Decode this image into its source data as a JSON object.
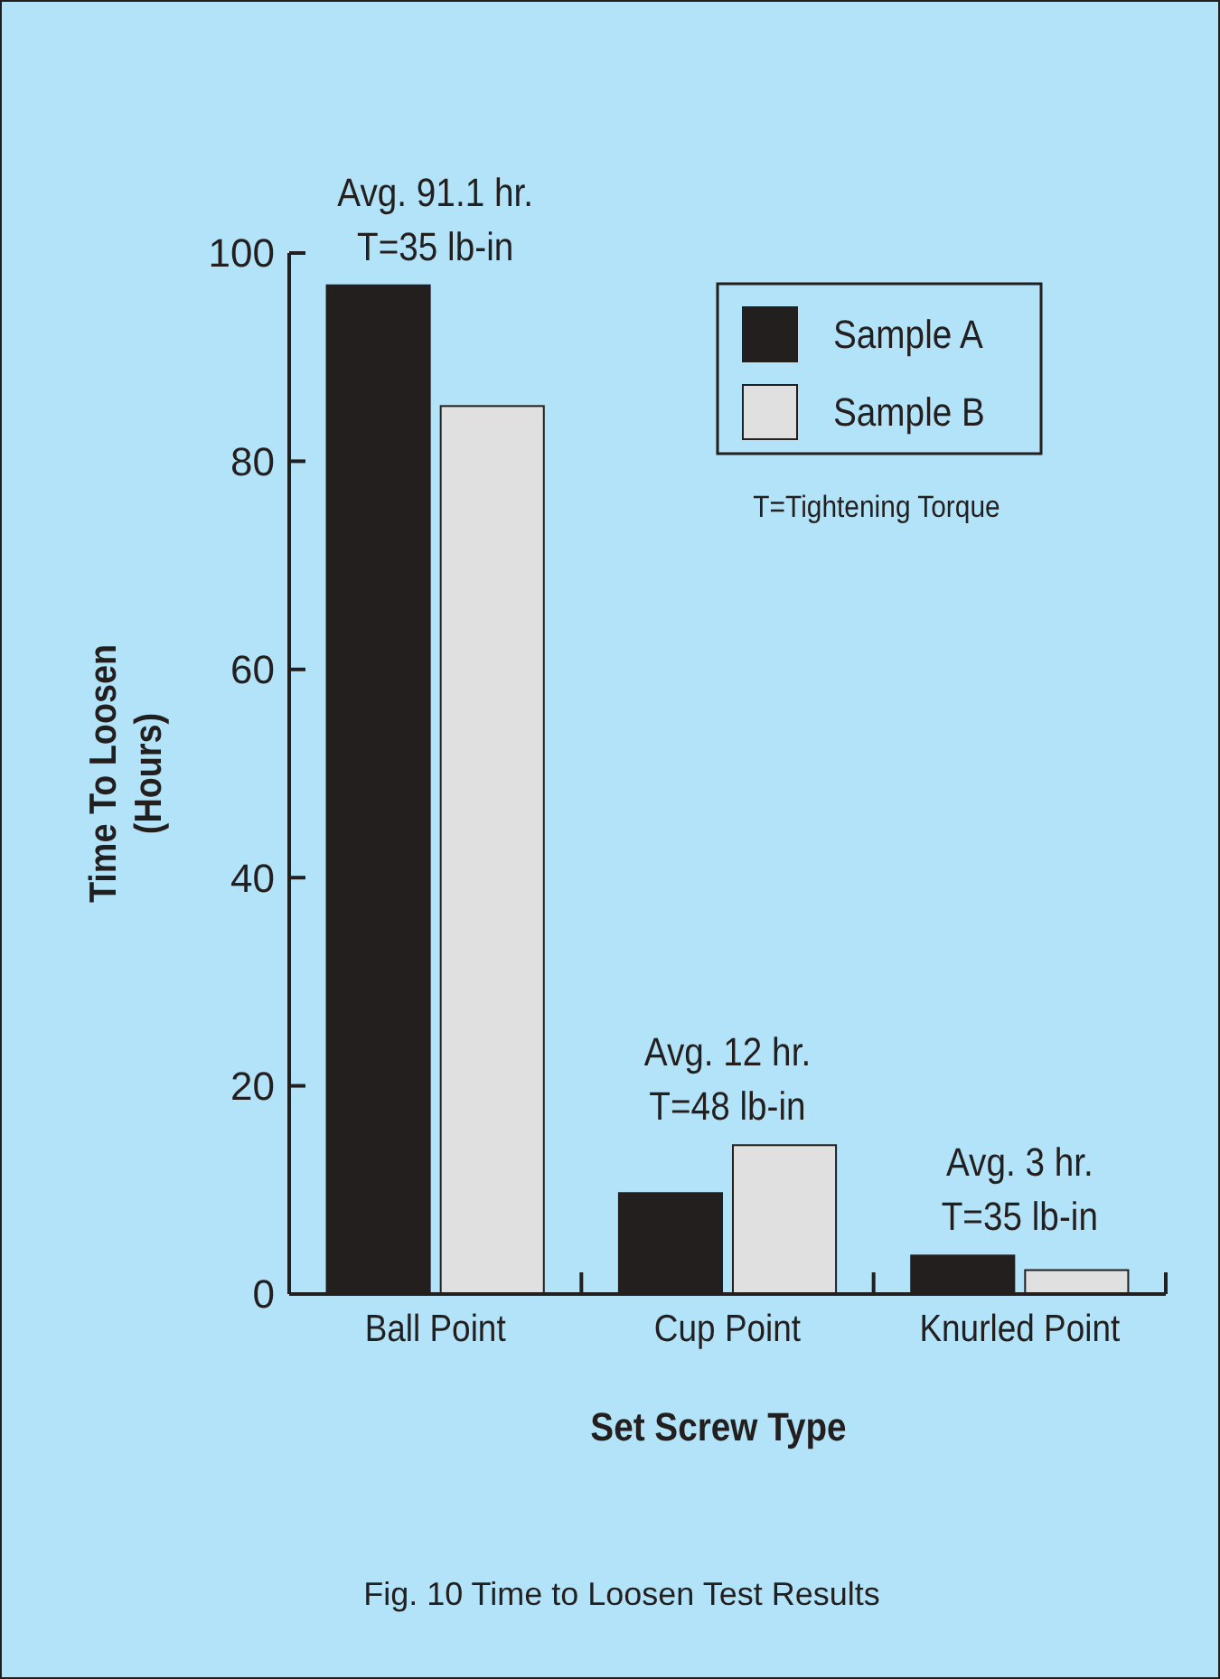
{
  "chart_data": {
    "type": "bar",
    "xlabel": "Set Screw Type",
    "ylabel": "Time To Loosen\n(Hours)",
    "categories": [
      "Ball Point",
      "Cup Point",
      "Knurled Point"
    ],
    "series": [
      {
        "name": "Sample A",
        "color": "#231f1e",
        "values": [
          96.9,
          9.7,
          3.7
        ]
      },
      {
        "name": "Sample B",
        "color": "#e0e0e0",
        "values": [
          85.3,
          14.3,
          2.3
        ]
      }
    ],
    "ylim": [
      0,
      100
    ],
    "yticks": [
      0,
      20,
      40,
      60,
      80,
      100
    ],
    "grid": false,
    "legend": "top right",
    "annotations": [
      {
        "text": "Avg. 91.1 hr.\nT=35 lb-in",
        "x": "Ball Point",
        "y": 96.9
      },
      {
        "text": "Avg. 12 hr.\nT=48 lb-in",
        "x": "Cup Point",
        "y": 14.3
      },
      {
        "text": "Avg. 3 hr.\nT=35 lb-in",
        "x": "Knurled Point",
        "y": 3.7
      },
      "T=Tightening Torque",
      "Fig. 10 Time to Loosen Test Results"
    ]
  }
}
